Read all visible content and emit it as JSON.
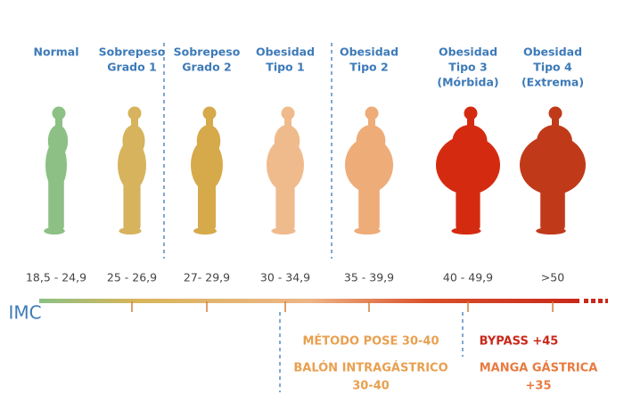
{
  "columns": [
    {
      "label_lines": [
        "Normal"
      ],
      "range": "18,5 - 24,9"
    },
    {
      "label_lines": [
        "Sobrepeso",
        "Grado 1"
      ],
      "range": "25 - 26,9"
    },
    {
      "label_lines": [
        "Sobrepeso",
        "Grado 2"
      ],
      "range": "27- 29,9"
    },
    {
      "label_lines": [
        "Obesidad",
        "Tipo 1"
      ],
      "range": "30 - 34,9"
    },
    {
      "label_lines": [
        "Obesidad",
        "Tipo 2"
      ],
      "range": "35 - 39,9"
    },
    {
      "label_lines": [
        "Obesidad",
        "Tipo 3",
        "(Mórbida)"
      ],
      "range": "40 - 49,9"
    },
    {
      "label_lines": [
        "Obesidad",
        "Tipo 4",
        "(Extrema)"
      ],
      "range": ">50"
    }
  ],
  "axis_label": "IMC",
  "treatments": {
    "pose": [
      "MÉTODO POSE 30-40"
    ],
    "balon": [
      "BALÓN INTRAGÁSTRICO",
      "30-40"
    ],
    "bypass": [
      "BYPASS +45"
    ],
    "manga": [
      "MANGA GÁSTRICA",
      "+35"
    ]
  }
}
